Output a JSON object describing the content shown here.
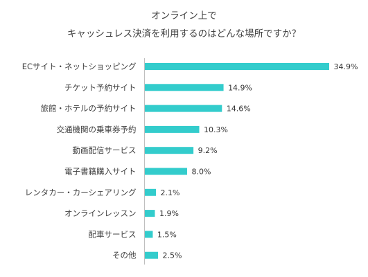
{
  "chart_data": {
    "type": "bar",
    "orientation": "horizontal",
    "title_lines": [
      "オンライン上で",
      "キャッシュレス決済を利用するのはどんな場所ですか？"
    ],
    "categories": [
      "ECサイト・ネットショッピング",
      "チケット予約サイト",
      "旅館・ホテルの予約サイト",
      "交通機関の乗車券予約",
      "動画配信サービス",
      "電子書籍購入サイト",
      "レンタカー・カーシェアリング",
      "オンラインレッスン",
      "配車サービス",
      "その他"
    ],
    "values": [
      34.9,
      14.9,
      14.6,
      10.3,
      9.2,
      8.0,
      2.1,
      1.9,
      1.5,
      2.5
    ],
    "value_labels": [
      "34.9%",
      "14.9%",
      "14.6%",
      "10.3%",
      "9.2%",
      "8.0%",
      "2.1%",
      "1.9%",
      "1.5%",
      "2.5%"
    ],
    "unit": "%",
    "bar_color": "#33CCCC",
    "axis_color": "#BFBFBF",
    "xlim": [
      0,
      34.9
    ],
    "grid": false,
    "legend": "none"
  }
}
